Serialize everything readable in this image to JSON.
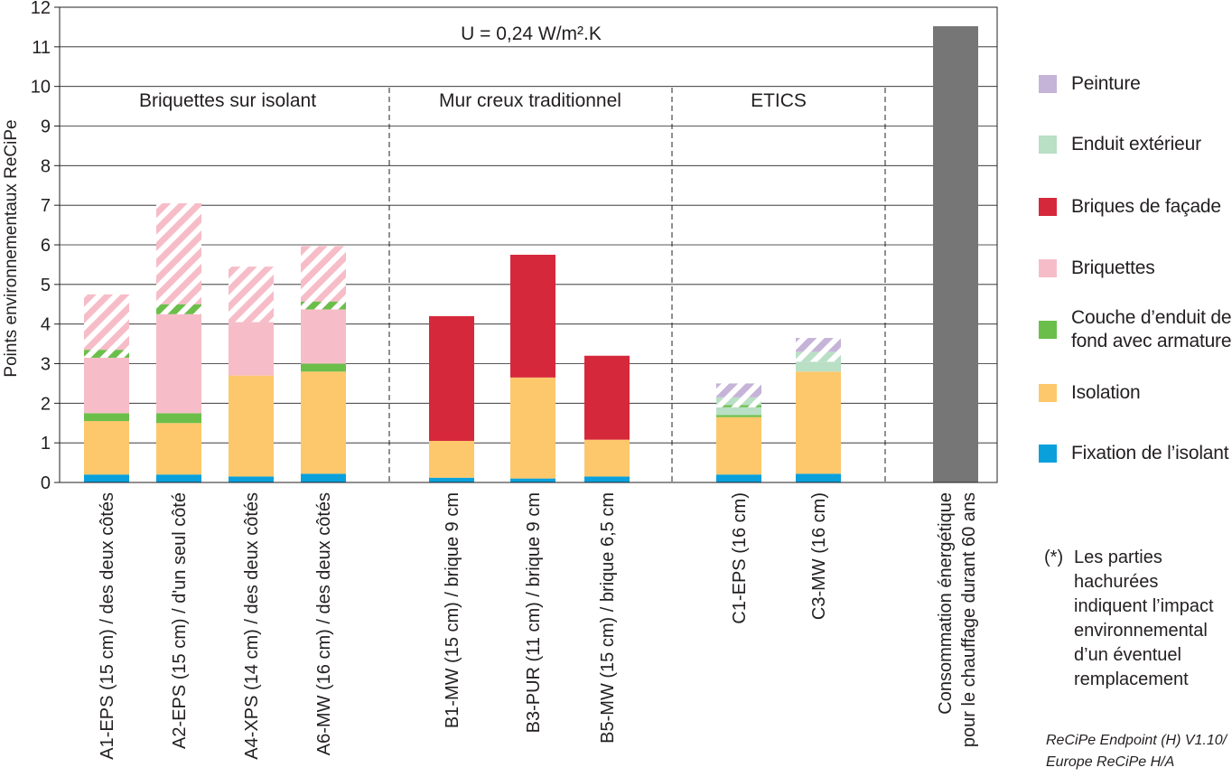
{
  "chart_data": {
    "type": "bar",
    "stacked": true,
    "ylabel": "Points environnementaux ReCiPe",
    "ylim": [
      0,
      12
    ],
    "yticks": [
      0,
      1,
      2,
      3,
      4,
      5,
      6,
      7,
      8,
      9,
      10,
      11,
      12
    ],
    "grid": true,
    "annotation": "U = 0,24 W/m².K",
    "groups": [
      {
        "label": "Briquettes sur isolant",
        "categories": [
          "A1-EPS (15 cm) / des deux côtés",
          "A2-EPS (15 cm) / d'un seul côté",
          "A4-XPS (14 cm) / des deux côtés",
          "A6-MW (16 cm) / des deux côtés"
        ]
      },
      {
        "label": "Mur creux traditionnel",
        "categories": [
          "B1-MW (15 cm) / brique 9 cm",
          "B3-PUR (11 cm) / brique 9 cm",
          "B5-MW (15 cm) / brique 6,5 cm"
        ]
      },
      {
        "label": "ETICS",
        "categories": [
          "C1-EPS (16 cm)",
          "C3-MW (16 cm)"
        ]
      },
      {
        "label": "",
        "categories": [
          "Consommation énergétique pour le chauffage durant 60 ans"
        ]
      }
    ],
    "categories": [
      "A1-EPS (15 cm) / des deux côtés",
      "A2-EPS (15 cm) / d'un seul côté",
      "A4-XPS (14 cm) / des deux côtés",
      "A6-MW (16 cm) / des deux côtés",
      "B1-MW (15 cm) / brique 9 cm",
      "B3-PUR (11 cm) / brique 9 cm",
      "B5-MW (15 cm) / brique 6,5 cm",
      "C1-EPS (16 cm)",
      "C3-MW (16 cm)",
      "Consommation énergétique pour le chauffage durant 60 ans"
    ],
    "bars": [
      {
        "segments": [
          {
            "layer": "fixation",
            "value": 0.2
          },
          {
            "layer": "isolation",
            "value": 1.35
          },
          {
            "layer": "enduit_fond",
            "value": 0.2
          },
          {
            "layer": "briquettes",
            "value": 1.4
          },
          {
            "layer": "enduit_fond",
            "value": 0.2,
            "hatched": true
          },
          {
            "layer": "briquettes",
            "value": 1.4,
            "hatched": true
          }
        ]
      },
      {
        "segments": [
          {
            "layer": "fixation",
            "value": 0.2
          },
          {
            "layer": "isolation",
            "value": 1.3
          },
          {
            "layer": "enduit_fond",
            "value": 0.25
          },
          {
            "layer": "briquettes",
            "value": 2.5
          },
          {
            "layer": "enduit_fond",
            "value": 0.25,
            "hatched": true
          },
          {
            "layer": "briquettes",
            "value": 2.55,
            "hatched": true
          }
        ]
      },
      {
        "segments": [
          {
            "layer": "fixation",
            "value": 0.15
          },
          {
            "layer": "isolation",
            "value": 2.55
          },
          {
            "layer": "briquettes",
            "value": 1.35
          },
          {
            "layer": "briquettes",
            "value": 1.4,
            "hatched": true
          }
        ]
      },
      {
        "segments": [
          {
            "layer": "fixation",
            "value": 0.22
          },
          {
            "layer": "isolation",
            "value": 2.58
          },
          {
            "layer": "enduit_fond",
            "value": 0.2
          },
          {
            "layer": "briquettes",
            "value": 1.37
          },
          {
            "layer": "enduit_fond",
            "value": 0.2,
            "hatched": true
          },
          {
            "layer": "briquettes",
            "value": 1.4,
            "hatched": true
          }
        ]
      },
      {
        "segments": [
          {
            "layer": "fixation",
            "value": 0.12
          },
          {
            "layer": "isolation",
            "value": 0.93
          },
          {
            "layer": "briques_facade",
            "value": 3.15
          }
        ]
      },
      {
        "segments": [
          {
            "layer": "fixation",
            "value": 0.1
          },
          {
            "layer": "isolation",
            "value": 2.55
          },
          {
            "layer": "briques_facade",
            "value": 3.1
          }
        ]
      },
      {
        "segments": [
          {
            "layer": "fixation",
            "value": 0.15
          },
          {
            "layer": "isolation",
            "value": 0.93
          },
          {
            "layer": "briques_facade",
            "value": 2.12
          }
        ]
      },
      {
        "segments": [
          {
            "layer": "fixation",
            "value": 0.2
          },
          {
            "layer": "isolation",
            "value": 1.45
          },
          {
            "layer": "enduit_fond",
            "value": 0.05
          },
          {
            "layer": "enduit_exterieur",
            "value": 0.2
          },
          {
            "layer": "enduit_fond",
            "value": 0.05,
            "hatched": true
          },
          {
            "layer": "enduit_exterieur",
            "value": 0.2,
            "hatched": true
          },
          {
            "layer": "peinture",
            "value": 0.35,
            "hatched": true
          }
        ]
      },
      {
        "segments": [
          {
            "layer": "fixation",
            "value": 0.22
          },
          {
            "layer": "isolation",
            "value": 2.58
          },
          {
            "layer": "enduit_exterieur",
            "value": 0.25
          },
          {
            "layer": "enduit_exterieur",
            "value": 0.25,
            "hatched": true
          },
          {
            "layer": "peinture",
            "value": 0.35,
            "hatched": true
          }
        ]
      },
      {
        "segments": [
          {
            "layer": "energie",
            "value": 11.52
          }
        ]
      }
    ],
    "legend": {
      "placement": "right",
      "entries": [
        {
          "key": "peinture",
          "label": "Peinture",
          "color": "#c6b3d8"
        },
        {
          "key": "enduit_exterieur",
          "label": "Enduit extérieur",
          "color": "#b9dfc5"
        },
        {
          "key": "briques_facade",
          "label": "Briques de façade",
          "color": "#d6283b"
        },
        {
          "key": "briquettes",
          "label": "Briquettes",
          "color": "#f6bdc8"
        },
        {
          "key": "enduit_fond",
          "label": "Couche d’enduit de fond avec armature",
          "color": "#6cbe4b"
        },
        {
          "key": "isolation",
          "label": "Isolation",
          "color": "#fdc86b"
        },
        {
          "key": "fixation",
          "label": "Fixation de l’isolant",
          "color": "#0aa0dc"
        }
      ]
    },
    "series_colors": {
      "energie": "#767676"
    },
    "note_mark": "(*)",
    "note": "Les parties hachurées indiquent l’impact environnemental d’un éventuel remplacement",
    "source": "ReCiPe Endpoint (H) V1.10/ Europe ReCiPe H/A"
  }
}
